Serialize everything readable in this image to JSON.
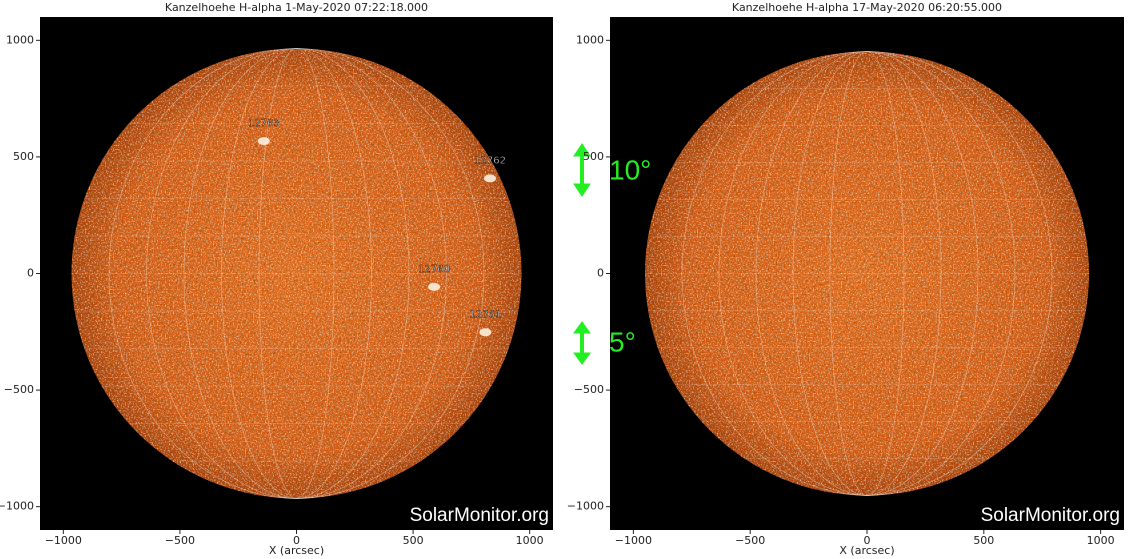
{
  "chart_data": [
    {
      "type": "image",
      "title": "Kanzelhoehe H-alpha  1-May-2020 07:22:18.000",
      "xlabel": "X (arcsec)",
      "watermark": "SolarMonitor.org",
      "xlim": [
        -1100,
        1100
      ],
      "ylim": [
        -1100,
        1100
      ],
      "xticks": [
        {
          "value": -1000,
          "label": "−1000"
        },
        {
          "value": -500,
          "label": "−500"
        },
        0,
        500,
        1000
      ],
      "yticks": [
        {
          "value": -1000,
          "label": "−1000"
        },
        {
          "value": -500,
          "label": "−500"
        },
        0,
        500,
        1000
      ],
      "annotations": [
        {
          "text": "12763",
          "x": -140,
          "y": 645
        },
        {
          "text": "12762",
          "x": 830,
          "y": 485
        },
        {
          "text": "12760",
          "x": 590,
          "y": 20
        },
        {
          "text": "12761",
          "x": 810,
          "y": -175
        }
      ]
    },
    {
      "type": "image",
      "title": "Kanzelhoehe H-alpha 17-May-2020 06:20:55.000",
      "xlabel": "X (arcsec)",
      "watermark": "SolarMonitor.org",
      "xlim": [
        -1100,
        1100
      ],
      "ylim": [
        -1100,
        1100
      ],
      "xticks": [
        {
          "value": -1000,
          "label": "−1000"
        },
        {
          "value": -500,
          "label": "−500"
        },
        0,
        500,
        1000
      ],
      "yticks": [
        {
          "value": -1000,
          "label": "−1000"
        },
        {
          "value": -500,
          "label": "−500"
        },
        0,
        500,
        1000
      ],
      "annotations": []
    }
  ],
  "overlay_labels": [
    "10°",
    "5°"
  ]
}
